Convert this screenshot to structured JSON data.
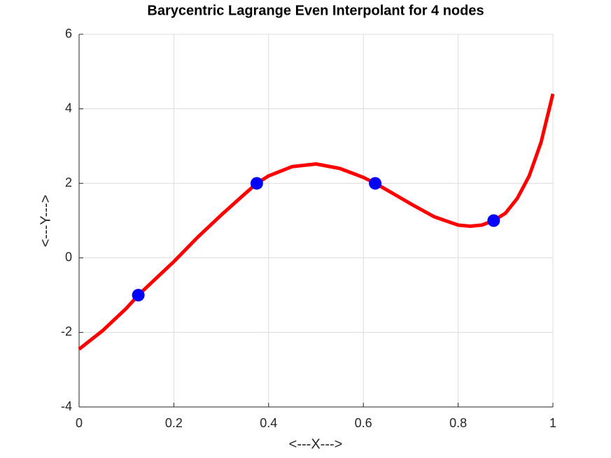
{
  "chart_data": {
    "type": "line",
    "title": "Barycentric Lagrange Even Interpolant for 4 nodes",
    "xlabel": "<---X--->",
    "ylabel": "<---Y--->",
    "xlim": [
      0,
      1
    ],
    "xticks": [
      0,
      0.2,
      0.4,
      0.6,
      0.8,
      1
    ],
    "ylim": [
      -4,
      6
    ],
    "yticks": [
      -4,
      -2,
      0,
      2,
      4,
      6
    ],
    "grid": true,
    "series": [
      {
        "type": "line",
        "color": "#ff0000",
        "x": [
          0,
          0.05,
          0.1,
          0.125,
          0.15,
          0.2,
          0.25,
          0.3,
          0.35,
          0.375,
          0.4,
          0.45,
          0.5,
          0.55,
          0.6,
          0.625,
          0.65,
          0.7,
          0.75,
          0.8,
          0.825,
          0.85,
          0.875,
          0.9,
          0.925,
          0.95,
          0.975,
          1
        ],
        "values": [
          -2.45,
          -1.95,
          -1.35,
          -1,
          -0.7,
          -0.1,
          0.55,
          1.15,
          1.72,
          2,
          2.2,
          2.45,
          2.52,
          2.4,
          2.16,
          2,
          1.82,
          1.45,
          1.1,
          0.88,
          0.85,
          0.88,
          1,
          1.2,
          1.6,
          2.2,
          3.1,
          4.4
        ]
      },
      {
        "type": "scatter",
        "color": "#0000ff",
        "x": [
          0.125,
          0.375,
          0.625,
          0.875
        ],
        "values": [
          -1,
          2,
          2,
          1
        ]
      }
    ]
  }
}
